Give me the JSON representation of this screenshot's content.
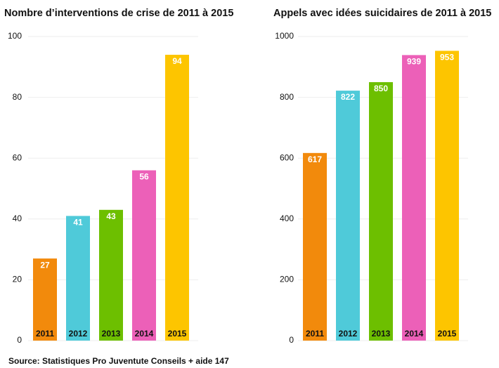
{
  "chart_data": [
    {
      "type": "bar",
      "title": "Nombre d’interventions de crise de 2011 à 2015",
      "categories": [
        "2011",
        "2012",
        "2013",
        "2014",
        "2015"
      ],
      "values": [
        27,
        41,
        43,
        56,
        94
      ],
      "colors": [
        "#f28a0c",
        "#4fcad9",
        "#6dbf00",
        "#ec60b8",
        "#fdc500"
      ],
      "ylim": [
        0,
        100
      ],
      "yticks": [
        0,
        20,
        40,
        60,
        80,
        100
      ],
      "grid": true
    },
    {
      "type": "bar",
      "title": "Appels avec idées suicidaires de 2011 à 2015",
      "categories": [
        "2011",
        "2012",
        "2013",
        "2014",
        "2015"
      ],
      "values": [
        617,
        822,
        850,
        939,
        953
      ],
      "colors": [
        "#f28a0c",
        "#4fcad9",
        "#6dbf00",
        "#ec60b8",
        "#fdc500"
      ],
      "ylim": [
        0,
        1000
      ],
      "yticks": [
        0,
        200,
        400,
        600,
        800,
        1000
      ],
      "grid": true
    }
  ],
  "source": "Source: Statistiques Pro Juventute Conseils + aide 147"
}
